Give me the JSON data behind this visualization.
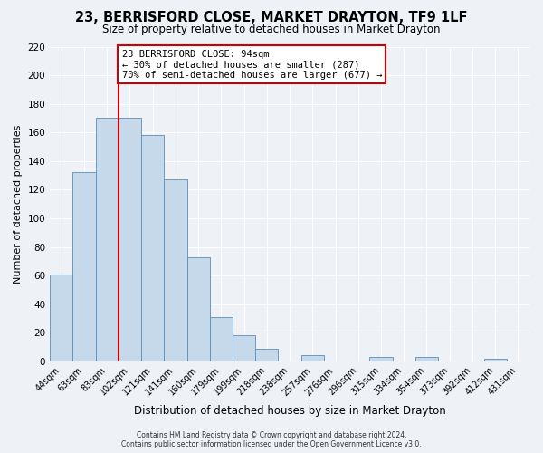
{
  "title": "23, BERRISFORD CLOSE, MARKET DRAYTON, TF9 1LF",
  "subtitle": "Size of property relative to detached houses in Market Drayton",
  "xlabel": "Distribution of detached houses by size in Market Drayton",
  "ylabel": "Number of detached properties",
  "bin_labels": [
    "44sqm",
    "63sqm",
    "83sqm",
    "102sqm",
    "121sqm",
    "141sqm",
    "160sqm",
    "179sqm",
    "199sqm",
    "218sqm",
    "238sqm",
    "257sqm",
    "276sqm",
    "296sqm",
    "315sqm",
    "334sqm",
    "354sqm",
    "373sqm",
    "392sqm",
    "412sqm",
    "431sqm"
  ],
  "bar_heights": [
    61,
    132,
    170,
    170,
    158,
    127,
    73,
    31,
    18,
    9,
    0,
    4,
    0,
    0,
    3,
    0,
    3,
    0,
    0,
    2,
    0
  ],
  "bar_color": "#c5d9ea",
  "bar_edge_color": "#5b8db8",
  "vline_index": 3,
  "vline_color": "#cc0000",
  "ylim": [
    0,
    220
  ],
  "yticks": [
    0,
    20,
    40,
    60,
    80,
    100,
    120,
    140,
    160,
    180,
    200,
    220
  ],
  "annotation_box_text": "23 BERRISFORD CLOSE: 94sqm\n← 30% of detached houses are smaller (287)\n70% of semi-detached houses are larger (677) →",
  "annotation_box_color": "#ffffff",
  "annotation_box_edgecolor": "#cc0000",
  "footer_line1": "Contains HM Land Registry data © Crown copyright and database right 2024.",
  "footer_line2": "Contains public sector information licensed under the Open Government Licence v3.0.",
  "background_color": "#eef2f7",
  "grid_color": "#ffffff",
  "title_fontsize": 10.5,
  "subtitle_fontsize": 8.5,
  "xlabel_fontsize": 8.5,
  "ylabel_fontsize": 8,
  "tick_fontsize": 7,
  "ann_fontsize": 7.5
}
